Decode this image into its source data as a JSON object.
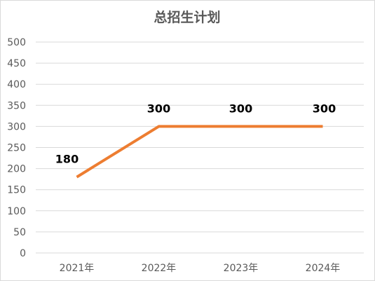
{
  "chart_data": {
    "type": "line",
    "title": "总招生计划",
    "categories": [
      "2021年",
      "2022年",
      "2023年",
      "2024年"
    ],
    "series": [
      {
        "values": [
          180,
          300,
          300,
          300
        ],
        "color": "#ED7D31"
      }
    ],
    "data_labels": [
      "180",
      "300",
      "300",
      "300"
    ],
    "yticks": [
      "0",
      "50",
      "100",
      "150",
      "200",
      "250",
      "300",
      "350",
      "400",
      "450",
      "500"
    ],
    "ylim": [
      0,
      500
    ],
    "grid": true,
    "legend": "none"
  }
}
